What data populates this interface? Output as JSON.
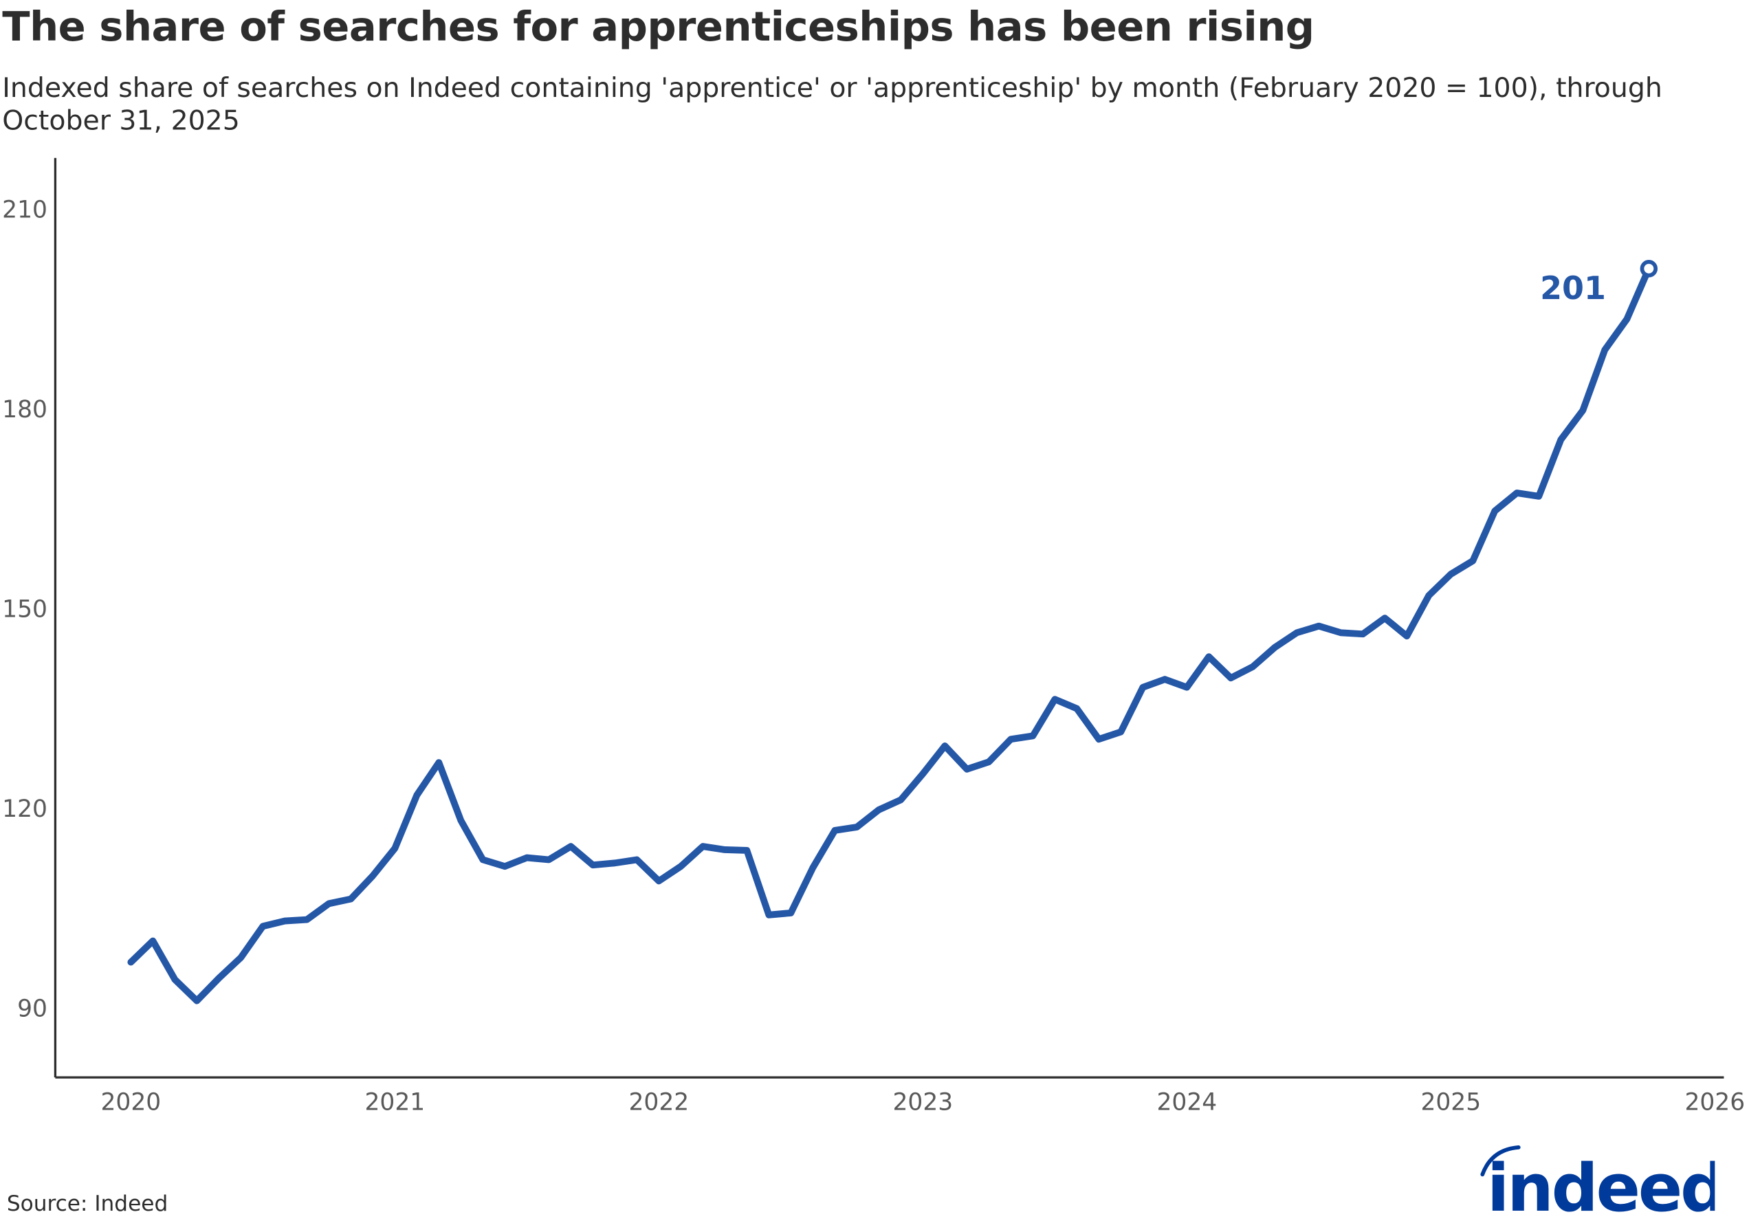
{
  "title": "The share of searches for apprenticeships has been rising",
  "subtitle": "Indexed share of searches on Indeed containing 'apprentice' or 'apprenticeship' by month (February 2020 = 100), through October 31, 2025",
  "source": "Source: Indeed",
  "logo_text": "indeed",
  "colors": {
    "line": "#2557a7",
    "logo": "#003a9b",
    "text": "#2d2d2d"
  },
  "chart_data": {
    "type": "line",
    "xlabel": "",
    "ylabel": "",
    "xlim": [
      2020,
      2026
    ],
    "ylim": [
      79,
      218
    ],
    "x_ticks": [
      "2020",
      "2021",
      "2022",
      "2023",
      "2024",
      "2025",
      "2026"
    ],
    "y_ticks": [
      "90",
      "120",
      "150",
      "180",
      "210"
    ],
    "grid": false,
    "start": "2020-01",
    "values": [
      96.8,
      100,
      94.2,
      91,
      94.4,
      97.5,
      102.2,
      103,
      103.2,
      105.6,
      106.3,
      109.8,
      113.9,
      121.9,
      126.8,
      118.1,
      112.2,
      111.2,
      112.5,
      112.2,
      114.2,
      111.4,
      111.7,
      112.2,
      109,
      111.2,
      114.2,
      113.7,
      113.6,
      103.9,
      104.2,
      111,
      116.6,
      117.1,
      119.7,
      121.2,
      125.1,
      129.3,
      125.8,
      126.9,
      130.3,
      130.8,
      136.3,
      134.9,
      130.3,
      131.4,
      138.1,
      139.3,
      138.1,
      142.7,
      139.5,
      141.2,
      144.1,
      146.3,
      147.3,
      146.3,
      146.1,
      148.5,
      145.8,
      151.9,
      155.1,
      157.1,
      164.6,
      167.3,
      166.8,
      175.3,
      179.7,
      188.8,
      193.4,
      201
    ],
    "end_label": "201"
  }
}
